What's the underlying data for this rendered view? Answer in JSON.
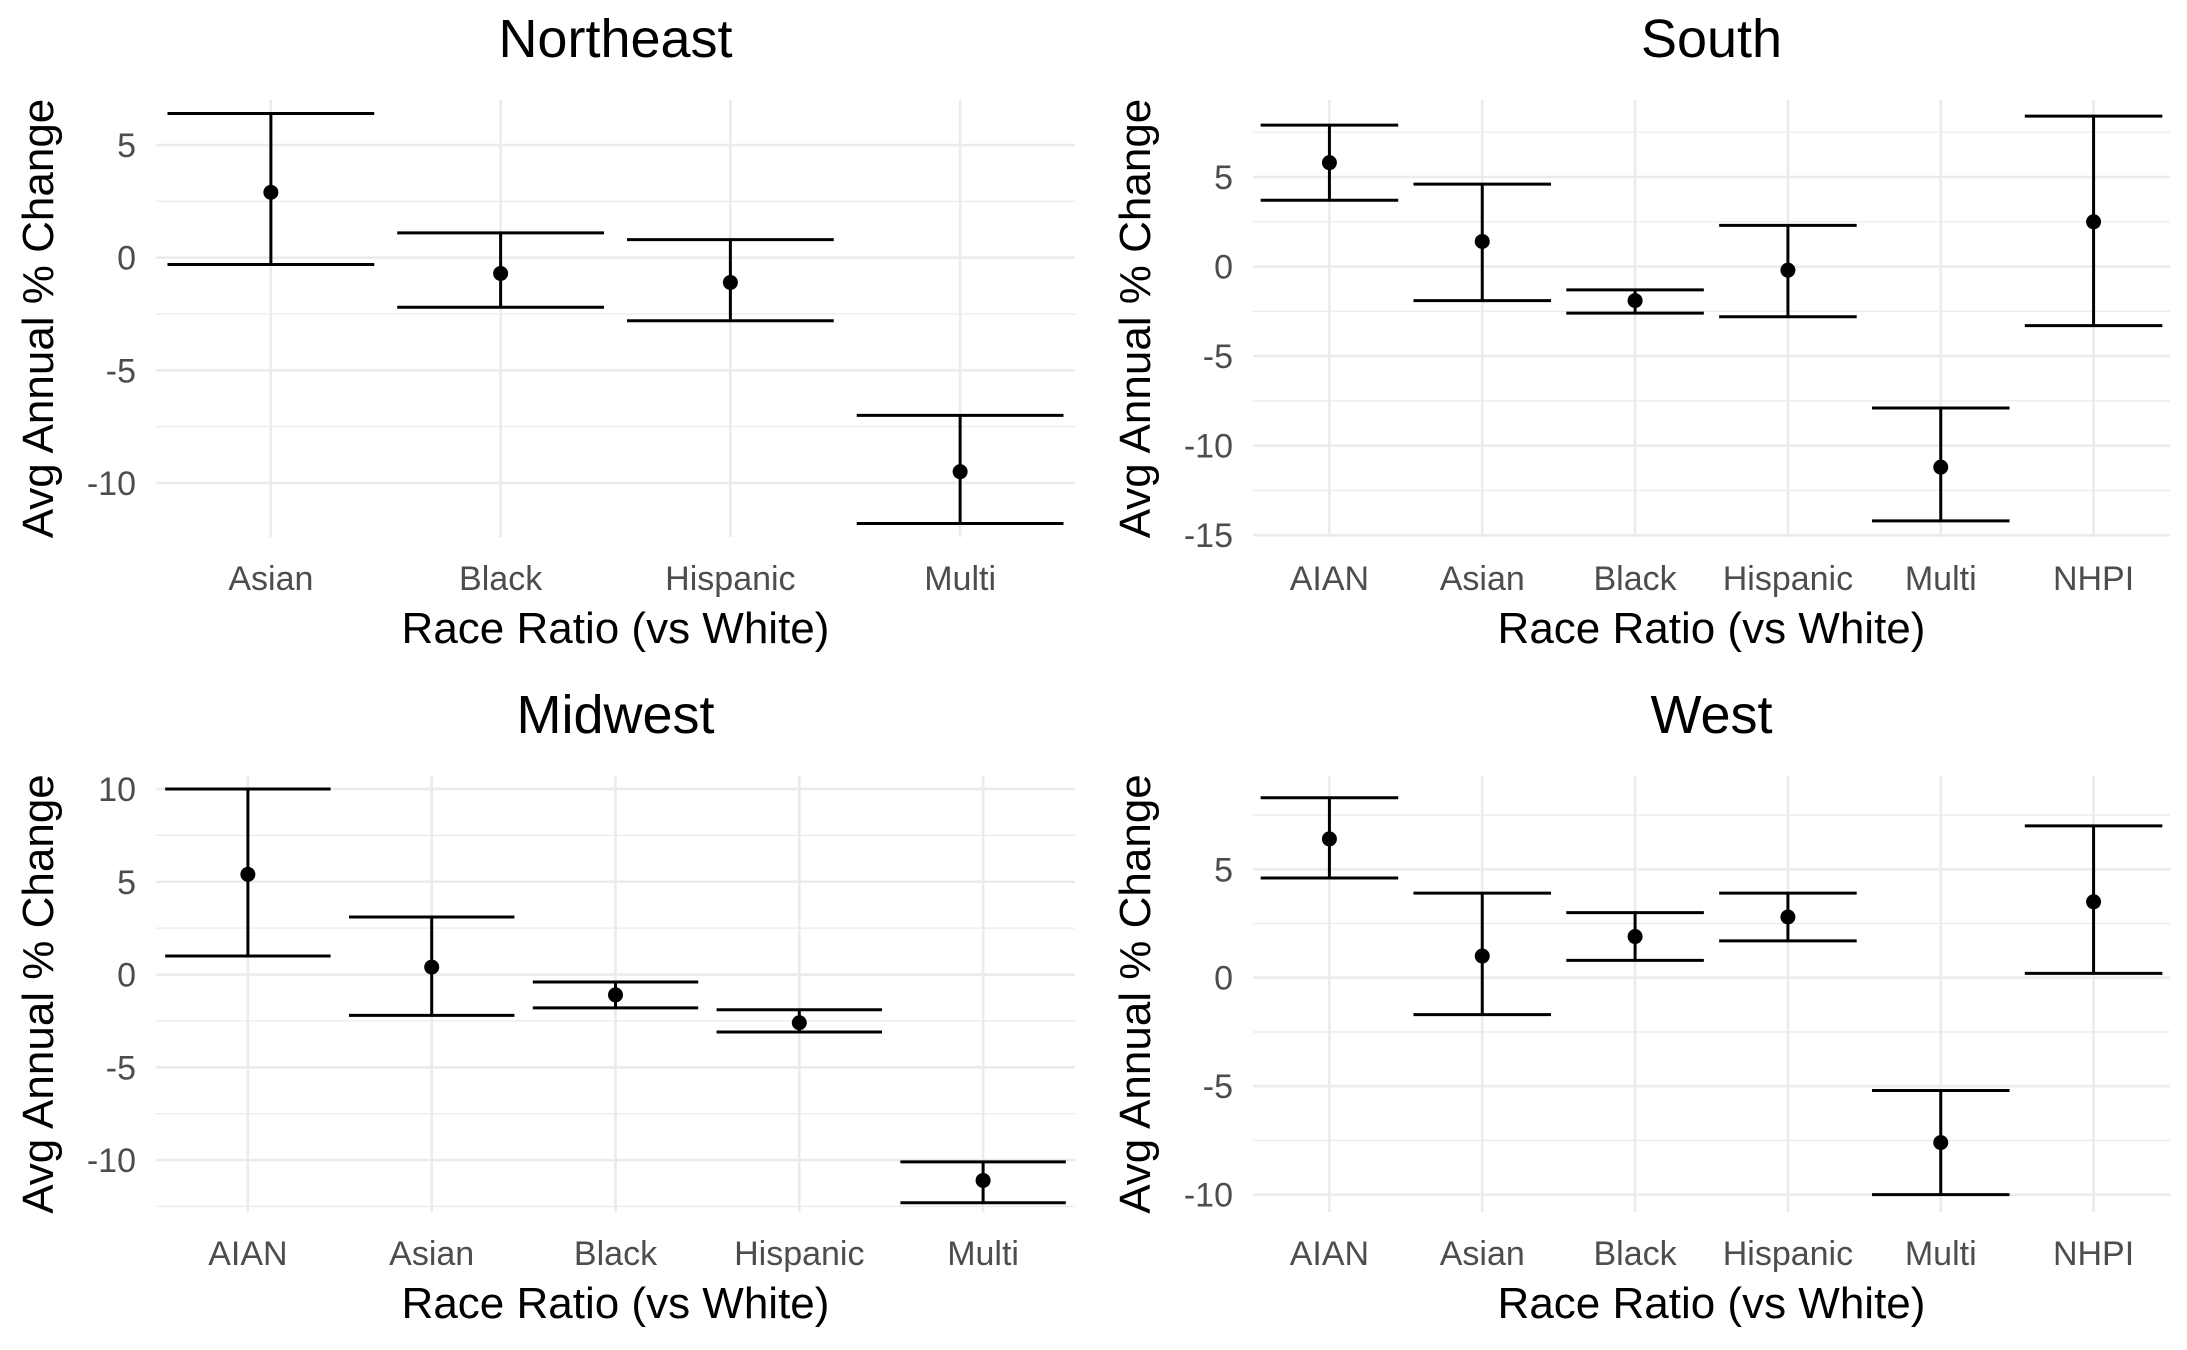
{
  "chart_data": [
    {
      "type": "errorbar",
      "title": "Northeast",
      "xlabel": "Race Ratio (vs White)",
      "ylabel": "Avg Annual % Change",
      "categories": [
        "Asian",
        "Black",
        "Hispanic",
        "Multi"
      ],
      "values": [
        2.9,
        -0.7,
        -1.1,
        -9.5
      ],
      "lower": [
        -0.3,
        -2.2,
        -2.8,
        -11.8
      ],
      "upper": [
        6.4,
        1.1,
        0.8,
        -7.0
      ],
      "ylim": [
        -12.4,
        7.0
      ],
      "yticks": [
        5,
        0,
        -5,
        -10
      ],
      "ytick_labels": [
        "5",
        "0",
        "-5",
        "-10"
      ],
      "grid": true
    },
    {
      "type": "errorbar",
      "title": "South",
      "xlabel": "Race Ratio (vs White)",
      "ylabel": "Avg Annual % Change",
      "categories": [
        "AIAN",
        "Asian",
        "Black",
        "Hispanic",
        "Multi",
        "NHPI"
      ],
      "values": [
        5.8,
        1.4,
        -1.9,
        -0.2,
        -11.2,
        2.5
      ],
      "lower": [
        3.7,
        -1.9,
        -2.6,
        -2.8,
        -14.2,
        -3.3
      ],
      "upper": [
        7.9,
        4.6,
        -1.3,
        2.3,
        -7.9,
        8.4
      ],
      "ylim": [
        -15.1,
        9.3
      ],
      "yticks": [
        5,
        0,
        -5,
        -10,
        -15
      ],
      "ytick_labels": [
        "5",
        "0",
        "-5",
        "-10",
        "-15"
      ],
      "grid": true
    },
    {
      "type": "errorbar",
      "title": "Midwest",
      "xlabel": "Race Ratio (vs White)",
      "ylabel": "Avg Annual % Change",
      "categories": [
        "AIAN",
        "Asian",
        "Black",
        "Hispanic",
        "Multi"
      ],
      "values": [
        5.4,
        0.4,
        -1.1,
        -2.6,
        -11.1
      ],
      "lower": [
        1.0,
        -2.2,
        -1.8,
        -3.1,
        -12.3
      ],
      "upper": [
        10.0,
        3.1,
        -0.4,
        -1.9,
        -10.1
      ],
      "ylim": [
        -12.8,
        10.7
      ],
      "yticks": [
        10,
        5,
        0,
        -5,
        -10
      ],
      "ytick_labels": [
        "10",
        "5",
        "0",
        "-5",
        "-10"
      ],
      "grid": true
    },
    {
      "type": "errorbar",
      "title": "West",
      "xlabel": "Race Ratio (vs White)",
      "ylabel": "Avg Annual % Change",
      "categories": [
        "AIAN",
        "Asian",
        "Black",
        "Hispanic",
        "Multi",
        "NHPI"
      ],
      "values": [
        6.4,
        1.0,
        1.9,
        2.8,
        -7.6,
        3.5
      ],
      "lower": [
        4.6,
        -1.7,
        0.8,
        1.7,
        -10.0,
        0.2
      ],
      "upper": [
        8.3,
        3.9,
        3.0,
        3.9,
        -5.2,
        7.0
      ],
      "ylim": [
        -10.8,
        9.3
      ],
      "yticks": [
        5,
        0,
        -5,
        -10
      ],
      "ytick_labels": [
        "5",
        "0",
        "-5",
        "-10"
      ],
      "grid": true
    }
  ]
}
